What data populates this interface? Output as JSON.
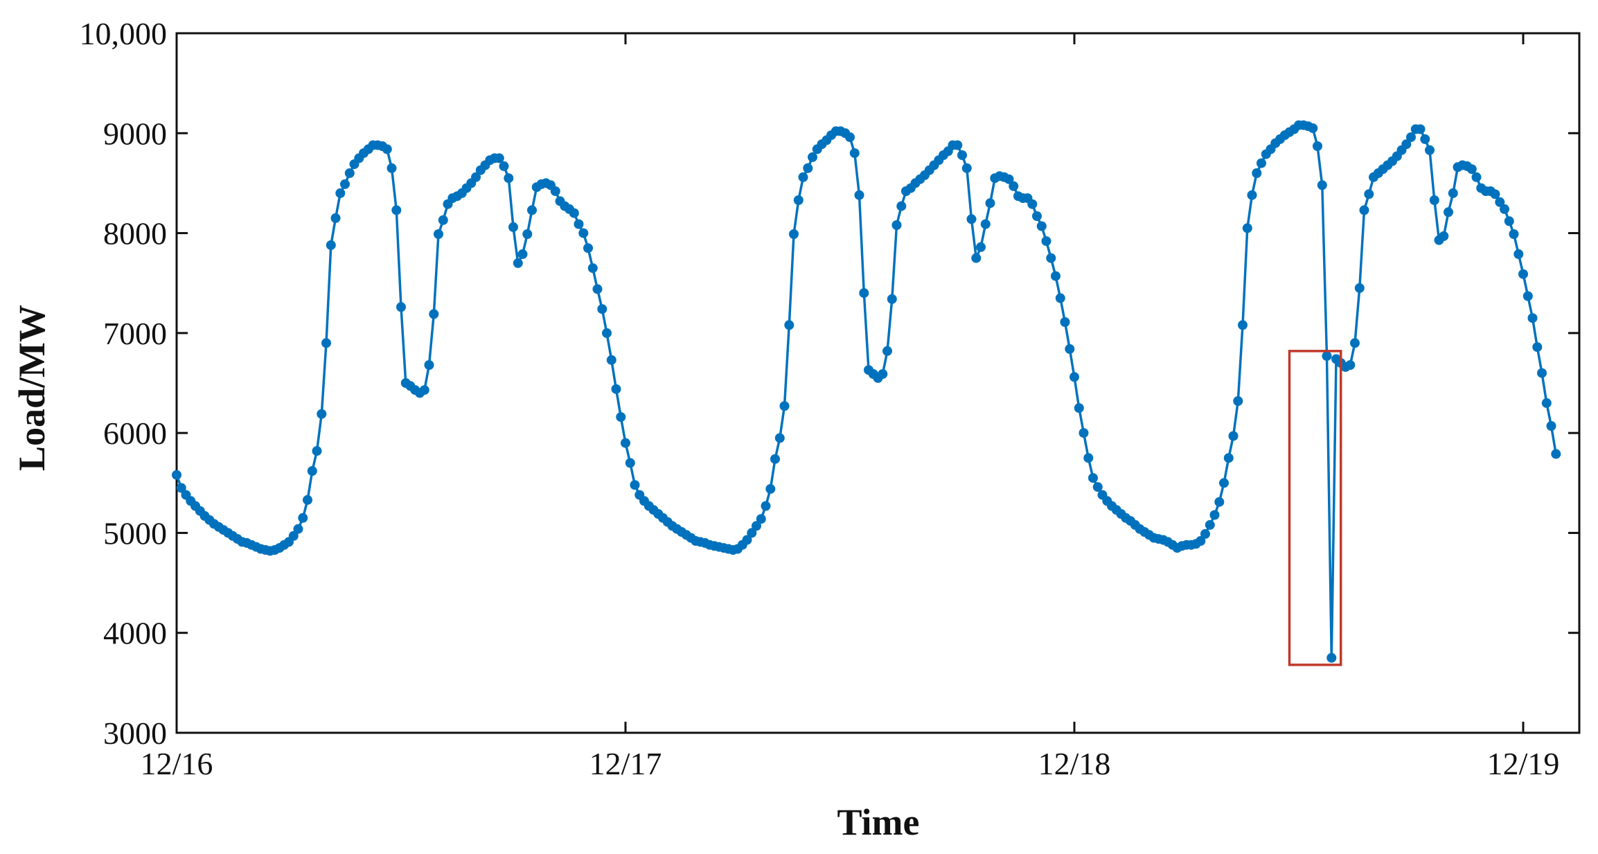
{
  "chart_data": {
    "type": "line",
    "title": "",
    "xlabel": "Time",
    "ylabel": "Load/MW",
    "ylim": [
      3000,
      10000
    ],
    "xlim": [
      "12/16 00:00",
      "12/19 03:00"
    ],
    "grid": false,
    "legend": "none",
    "colors": {
      "series": "#0072BD",
      "highlight": "#C0392B",
      "axis": "#111111"
    },
    "y_ticks": [
      {
        "value": 3000,
        "label": "3000"
      },
      {
        "value": 4000,
        "label": "4000"
      },
      {
        "value": 5000,
        "label": "5000"
      },
      {
        "value": 6000,
        "label": "6000"
      },
      {
        "value": 7000,
        "label": "7000"
      },
      {
        "value": 8000,
        "label": "8000"
      },
      {
        "value": 9000,
        "label": "9000"
      },
      {
        "value": 10000,
        "label": "10,000"
      }
    ],
    "x_ticks": [
      {
        "value": "12/16 00:00",
        "label": "12/16"
      },
      {
        "value": "12/17 00:00",
        "label": "12/17"
      },
      {
        "value": "12/18 00:00",
        "label": "12/18"
      },
      {
        "value": "12/19 00:00",
        "label": "12/19"
      }
    ],
    "series": [
      {
        "sampling_interval_minutes": 15,
        "start": "12/16 00:00",
        "values": [
          5580,
          5450,
          5380,
          5320,
          5270,
          5220,
          5170,
          5130,
          5090,
          5060,
          5030,
          5000,
          4970,
          4940,
          4910,
          4900,
          4880,
          4860,
          4840,
          4830,
          4820,
          4830,
          4850,
          4880,
          4910,
          4970,
          5040,
          5150,
          5330,
          5620,
          5820,
          6190,
          6900,
          7880,
          8150,
          8400,
          8490,
          8600,
          8690,
          8750,
          8800,
          8840,
          8880,
          8880,
          8870,
          8840,
          8650,
          8230,
          7260,
          6500,
          6470,
          6430,
          6400,
          6430,
          6680,
          7190,
          7990,
          8130,
          8290,
          8350,
          8370,
          8400,
          8450,
          8500,
          8560,
          8630,
          8680,
          8730,
          8750,
          8750,
          8670,
          8550,
          8060,
          7700,
          7790,
          7990,
          8230,
          8460,
          8490,
          8500,
          8480,
          8420,
          8320,
          8270,
          8240,
          8200,
          8090,
          8000,
          7850,
          7650,
          7440,
          7240,
          7000,
          6730,
          6440,
          6160,
          5900,
          5700,
          5480,
          5380,
          5320,
          5270,
          5230,
          5190,
          5150,
          5110,
          5070,
          5040,
          5010,
          4980,
          4950,
          4920,
          4910,
          4900,
          4880,
          4870,
          4860,
          4850,
          4840,
          4830,
          4840,
          4880,
          4930,
          5000,
          5070,
          5140,
          5270,
          5440,
          5740,
          5950,
          6270,
          7080,
          7990,
          8330,
          8560,
          8650,
          8760,
          8840,
          8890,
          8930,
          8980,
          9020,
          9020,
          9000,
          8960,
          8800,
          8380,
          7400,
          6630,
          6590,
          6550,
          6590,
          6820,
          7340,
          8080,
          8270,
          8420,
          8450,
          8500,
          8540,
          8580,
          8630,
          8680,
          8730,
          8780,
          8820,
          8880,
          8880,
          8780,
          8650,
          8140,
          7750,
          7860,
          8090,
          8300,
          8550,
          8570,
          8560,
          8540,
          8470,
          8370,
          8350,
          8350,
          8290,
          8170,
          8070,
          7920,
          7750,
          7570,
          7350,
          7110,
          6840,
          6560,
          6250,
          6000,
          5750,
          5550,
          5460,
          5380,
          5320,
          5270,
          5230,
          5190,
          5150,
          5120,
          5080,
          5040,
          5010,
          4980,
          4950,
          4940,
          4930,
          4910,
          4880,
          4850,
          4870,
          4880,
          4880,
          4890,
          4920,
          4990,
          5080,
          5180,
          5310,
          5500,
          5750,
          5970,
          6320,
          7080,
          8050,
          8380,
          8600,
          8700,
          8790,
          8840,
          8900,
          8940,
          8980,
          9010,
          9040,
          9080,
          9080,
          9070,
          9050,
          8870,
          8480,
          6770,
          3750,
          6740,
          6700,
          6660,
          6680,
          6900,
          7450,
          8230,
          8390,
          8560,
          8600,
          8640,
          8680,
          8720,
          8770,
          8830,
          8890,
          8960,
          9040,
          9040,
          8940,
          8830,
          8330,
          7930,
          7970,
          8210,
          8400,
          8660,
          8680,
          8670,
          8640,
          8560,
          8450,
          8420,
          8420,
          8390,
          8310,
          8240,
          8120,
          7990,
          7790,
          7590,
          7370,
          7150,
          6860,
          6600,
          6300,
          6070,
          5790
        ]
      }
    ],
    "annotations": [
      {
        "type": "rectangle",
        "x_range": [
          "12/18 11:30",
          "12/18 14:15"
        ],
        "y_range": [
          3680,
          6820
        ]
      }
    ]
  }
}
